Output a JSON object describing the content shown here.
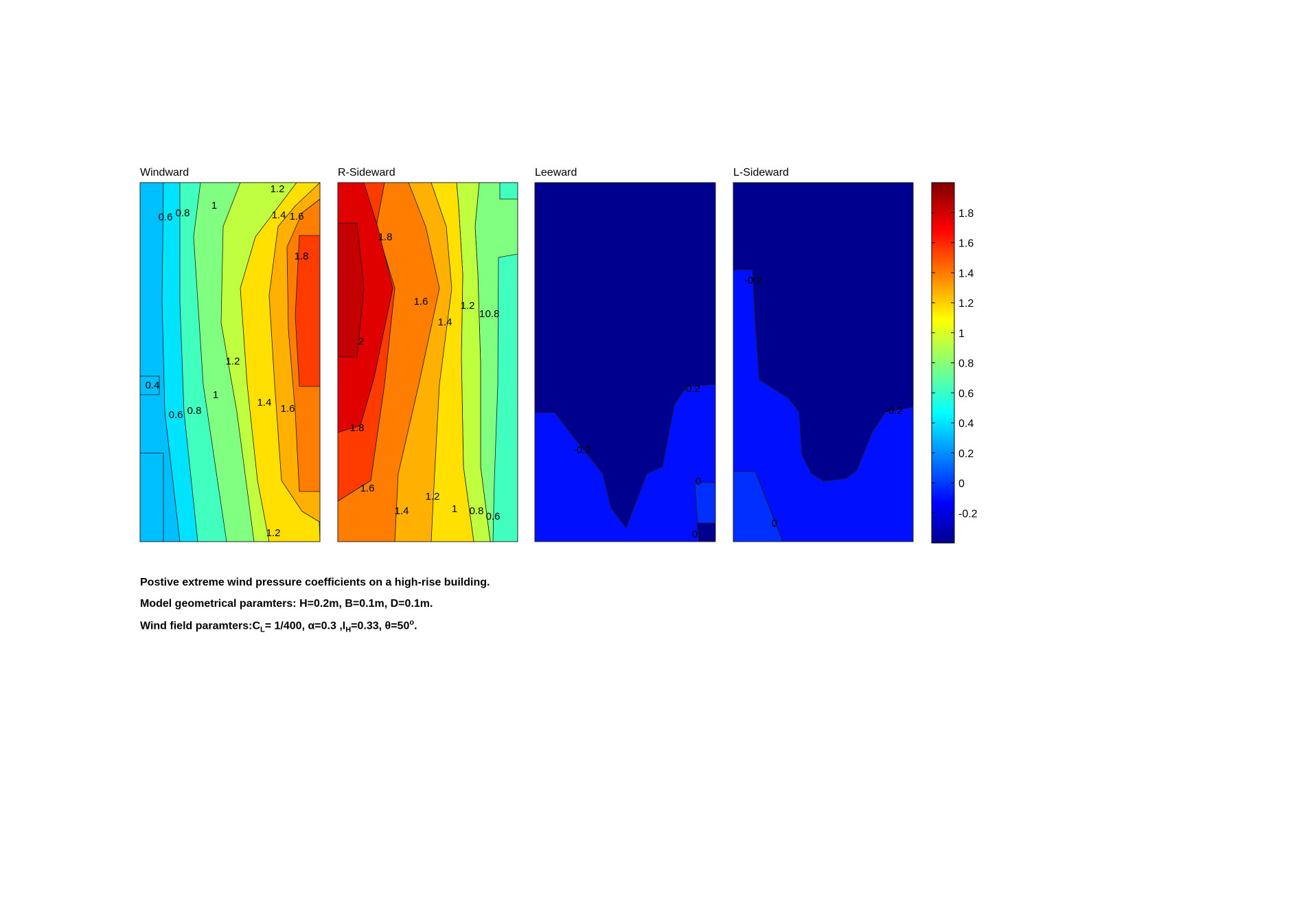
{
  "chart_data": [
    {
      "type": "heatmap",
      "title": "Windward",
      "contour_labels": [
        "0.6",
        "0.8",
        "1",
        "1.2",
        "1.4",
        "1.6",
        "1.8",
        "1.2",
        "0.4",
        "0.6",
        "0.8",
        "1",
        "1.4",
        "1.6",
        "1.2"
      ],
      "band_colors": [
        "#00bfff",
        "#00e3ff",
        "#40ffbf",
        "#80ff80",
        "#c0ff40",
        "#ffe000",
        "#ffb000",
        "#ff7d00",
        "#ff3b00",
        "#e00000",
        "#c40000"
      ]
    },
    {
      "type": "heatmap",
      "title": "R-Sideward",
      "contour_labels": [
        "1.8",
        "1.6",
        "1.4",
        "1.2",
        "1",
        "0.8",
        "2",
        "1.8",
        "1.6",
        "1.4",
        "1.2",
        "1",
        "0.8",
        "0.6"
      ],
      "band_colors": [
        "#40ffbf",
        "#80ff80",
        "#c0ff40",
        "#ffe000",
        "#ffb000",
        "#ff7d00",
        "#ff3b00",
        "#e00000",
        "#c40000",
        "#800000"
      ]
    },
    {
      "type": "heatmap",
      "title": "Leeward",
      "contour_labels": [
        "-0.2",
        "-0.2",
        "0",
        "0"
      ],
      "band_colors": [
        "#00008f",
        "#0010ff",
        "#0030ff"
      ]
    },
    {
      "type": "heatmap",
      "title": "L-Sideward",
      "contour_labels": [
        "-0.2",
        "-0.2",
        "0"
      ],
      "band_colors": [
        "#00008f",
        "#0010ff",
        "#0030ff"
      ]
    }
  ],
  "colorbar": {
    "range": [
      -0.4,
      2.0
    ],
    "ticks": [
      -0.2,
      0,
      0.2,
      0.4,
      0.6,
      0.8,
      1,
      1.2,
      1.4,
      1.6,
      1.8
    ],
    "tick_labels": [
      "-0.2",
      "0",
      "0.2",
      "0.4",
      "0.6",
      "0.8",
      "1",
      "1.2",
      "1.4",
      "1.6",
      "1.8"
    ],
    "colormap": "jet"
  },
  "caption": {
    "line1": "Postive extreme  wind pressure coefficients on a high-rise building.",
    "line2": "Model geometrical paramters: H=0.2m, B=0.1m, D=0.1m.",
    "line3_prefix": "Wind field paramters:C",
    "line3_sub1": "L",
    "line3_mid1": "= 1/400, α=0.3 ,I",
    "line3_sub2": "H",
    "line3_mid2": "=0.33, θ=50",
    "line3_sup": "o",
    "line3_end": "."
  }
}
